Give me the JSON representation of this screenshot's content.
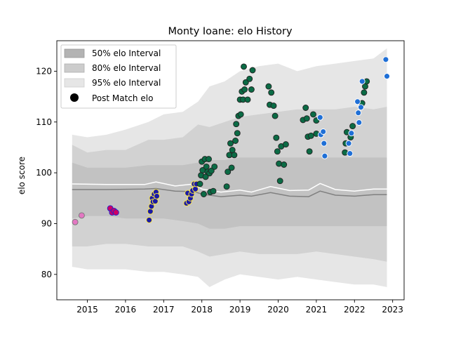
{
  "chart_data": {
    "type": "scatter",
    "title": "Monty Ioane: elo History",
    "xlabel": "",
    "ylabel": "elo score",
    "xlim": [
      2014.2,
      2023.3
    ],
    "ylim": [
      75,
      126
    ],
    "x_ticks": [
      2015,
      2016,
      2017,
      2018,
      2019,
      2020,
      2021,
      2022,
      2023
    ],
    "y_ticks": [
      80,
      90,
      100,
      110,
      120
    ],
    "legend": {
      "placement": "top-left",
      "entries": [
        "50% elo Interval",
        "80% elo Interval",
        "95% elo Interval",
        "Post Match elo"
      ]
    },
    "bands": {
      "x": [
        2014.6,
        2015.0,
        2015.5,
        2016.0,
        2016.6,
        2017.0,
        2017.5,
        2017.9,
        2018.2,
        2018.6,
        2019.0,
        2019.5,
        2020.0,
        2020.5,
        2021.0,
        2021.5,
        2022.0,
        2022.5,
        2022.85
      ],
      "b95_lo": [
        81.5,
        81.0,
        81.0,
        81.0,
        80.5,
        80.5,
        80.0,
        79.5,
        77.5,
        79.0,
        80.0,
        79.5,
        79.0,
        79.5,
        79.0,
        78.5,
        78.0,
        78.0,
        77.5
      ],
      "b95_hi": [
        107.5,
        107.0,
        107.5,
        108.5,
        110.0,
        111.5,
        112.0,
        114.0,
        117.0,
        118.0,
        120.0,
        121.0,
        121.5,
        120.0,
        121.0,
        121.5,
        122.0,
        122.5,
        124.5
      ],
      "b80_lo": [
        85.5,
        85.5,
        86.0,
        86.0,
        85.5,
        85.5,
        85.5,
        84.5,
        83.5,
        84.0,
        84.5,
        84.0,
        84.0,
        84.0,
        84.5,
        84.0,
        83.5,
        83.0,
        82.5
      ],
      "b80_hi": [
        105.5,
        104.0,
        104.5,
        104.5,
        106.5,
        106.5,
        107.0,
        109.5,
        109.0,
        110.0,
        111.0,
        111.5,
        112.0,
        112.5,
        112.5,
        112.5,
        113.0,
        112.5,
        113.0
      ],
      "b50_lo": [
        91.0,
        91.5,
        91.5,
        91.0,
        91.0,
        91.0,
        90.5,
        90.0,
        89.0,
        89.0,
        89.5,
        89.5,
        89.5,
        89.5,
        89.5,
        89.5,
        89.5,
        89.5,
        89.5
      ],
      "b50_hi": [
        102.0,
        101.0,
        101.0,
        101.0,
        101.5,
        101.5,
        101.5,
        102.0,
        102.5,
        102.5,
        103.0,
        103.0,
        103.0,
        103.0,
        103.0,
        103.0,
        103.0,
        103.0,
        103.0
      ]
    },
    "lines": [
      {
        "color": "#ffffff",
        "x": [
          2014.6,
          2015.5,
          2016.5,
          2016.8,
          2017.3,
          2017.8,
          2018.0,
          2018.5,
          2019.0,
          2019.3,
          2019.8,
          2020.3,
          2020.8,
          2021.1,
          2021.5,
          2022.0,
          2022.5,
          2022.85
        ],
        "y": [
          97.8,
          97.7,
          97.7,
          98.2,
          97.4,
          97.8,
          96.8,
          96.2,
          96.6,
          96.2,
          97.3,
          96.5,
          96.6,
          97.9,
          96.7,
          96.4,
          96.8,
          96.8
        ]
      },
      {
        "color": "#808080",
        "x": [
          2014.6,
          2015.5,
          2016.5,
          2016.8,
          2017.3,
          2017.8,
          2018.0,
          2018.5,
          2019.0,
          2019.3,
          2019.8,
          2020.3,
          2020.8,
          2021.1,
          2021.5,
          2022.0,
          2022.5,
          2022.85
        ],
        "y": [
          96.7,
          96.7,
          96.8,
          96.9,
          96.4,
          96.3,
          95.8,
          95.3,
          95.6,
          95.4,
          96.1,
          95.4,
          95.3,
          96.4,
          95.6,
          95.4,
          95.7,
          95.7
        ]
      }
    ],
    "series": [
      {
        "fill": "#e377c2",
        "edge": "#777777",
        "points": [
          [
            2014.68,
            90.3
          ],
          [
            2014.85,
            91.6
          ]
        ]
      },
      {
        "fill": "#cc0066",
        "edge": "#2222cc",
        "points": [
          [
            2015.6,
            93.0
          ],
          [
            2015.65,
            92.2
          ],
          [
            2015.7,
            92.5
          ],
          [
            2015.75,
            92.2
          ]
        ]
      },
      {
        "fill": "#1a1aa6",
        "edge": "#ffeb3b",
        "points": [
          [
            2016.62,
            90.7
          ],
          [
            2016.65,
            92.4
          ],
          [
            2016.68,
            93.4
          ],
          [
            2016.7,
            95.0
          ],
          [
            2016.72,
            94.3
          ],
          [
            2016.75,
            95.8
          ],
          [
            2016.78,
            94.4
          ],
          [
            2016.8,
            96.2
          ],
          [
            2016.82,
            95.4
          ],
          [
            2017.6,
            94.0
          ],
          [
            2017.63,
            96.0
          ],
          [
            2017.66,
            94.3
          ],
          [
            2017.7,
            95.0
          ],
          [
            2017.73,
            95.8
          ],
          [
            2017.76,
            96.5
          ],
          [
            2017.8,
            97.8
          ],
          [
            2017.83,
            96.8
          ],
          [
            2017.86,
            97.8
          ]
        ]
      },
      {
        "fill": "#0b6b45",
        "edge": "#222222",
        "points": [
          [
            2017.95,
            97.8
          ],
          [
            2017.98,
            99.5
          ],
          [
            2018.0,
            102.2
          ],
          [
            2018.02,
            100.5
          ],
          [
            2018.05,
            95.8
          ],
          [
            2018.08,
            102.7
          ],
          [
            2018.1,
            99.2
          ],
          [
            2018.12,
            101.2
          ],
          [
            2018.15,
            100.2
          ],
          [
            2018.18,
            102.7
          ],
          [
            2018.2,
            99.9
          ],
          [
            2018.22,
            96.2
          ],
          [
            2018.25,
            100.4
          ],
          [
            2018.3,
            96.4
          ],
          [
            2018.33,
            101.2
          ],
          [
            2018.65,
            97.3
          ],
          [
            2018.68,
            100.2
          ],
          [
            2018.72,
            103.5
          ],
          [
            2018.75,
            105.8
          ],
          [
            2018.78,
            101.0
          ],
          [
            2018.8,
            104.5
          ],
          [
            2018.85,
            103.5
          ],
          [
            2018.88,
            106.3
          ],
          [
            2018.9,
            109.6
          ],
          [
            2018.93,
            107.8
          ],
          [
            2018.96,
            111.2
          ],
          [
            2019.0,
            114.4
          ],
          [
            2019.02,
            111.5
          ],
          [
            2019.05,
            116.0
          ],
          [
            2019.08,
            114.4
          ],
          [
            2019.1,
            120.9
          ],
          [
            2019.12,
            116.4
          ],
          [
            2019.15,
            117.8
          ],
          [
            2019.2,
            114.4
          ],
          [
            2019.25,
            118.5
          ],
          [
            2019.3,
            116.4
          ],
          [
            2019.33,
            120.2
          ],
          [
            2019.75,
            117.0
          ],
          [
            2019.78,
            113.4
          ],
          [
            2019.82,
            115.8
          ],
          [
            2019.88,
            113.2
          ],
          [
            2019.92,
            111.2
          ],
          [
            2019.95,
            106.9
          ],
          [
            2019.98,
            104.2
          ],
          [
            2020.02,
            101.8
          ],
          [
            2020.05,
            98.4
          ],
          [
            2020.08,
            105.2
          ],
          [
            2020.15,
            101.6
          ],
          [
            2020.2,
            105.6
          ],
          [
            2020.65,
            110.4
          ],
          [
            2020.72,
            112.8
          ],
          [
            2020.75,
            110.7
          ],
          [
            2020.78,
            107.1
          ],
          [
            2020.82,
            104.2
          ],
          [
            2020.86,
            107.3
          ],
          [
            2020.92,
            111.5
          ],
          [
            2021.0,
            110.3
          ],
          [
            2021.0,
            107.7
          ],
          [
            2021.75,
            104.0
          ],
          [
            2021.77,
            105.8
          ],
          [
            2021.8,
            108.0
          ],
          [
            2021.9,
            107.0
          ],
          [
            2021.95,
            109.2
          ],
          [
            2022.2,
            113.7
          ],
          [
            2022.25,
            115.8
          ],
          [
            2022.28,
            117.0
          ],
          [
            2022.32,
            118.0
          ]
        ]
      },
      {
        "fill": "#1f6fd6",
        "edge": "#ffffff",
        "points": [
          [
            2021.1,
            110.9
          ],
          [
            2021.12,
            107.5
          ],
          [
            2021.18,
            108.1
          ],
          [
            2021.2,
            105.8
          ],
          [
            2021.22,
            103.3
          ],
          [
            2021.85,
            105.8
          ],
          [
            2021.88,
            103.8
          ],
          [
            2021.92,
            107.8
          ],
          [
            2022.08,
            114.0
          ],
          [
            2022.1,
            111.8
          ],
          [
            2022.12,
            109.9
          ],
          [
            2022.17,
            112.9
          ],
          [
            2022.2,
            118.0
          ],
          [
            2022.82,
            122.3
          ],
          [
            2022.85,
            119.0
          ]
        ]
      }
    ]
  }
}
